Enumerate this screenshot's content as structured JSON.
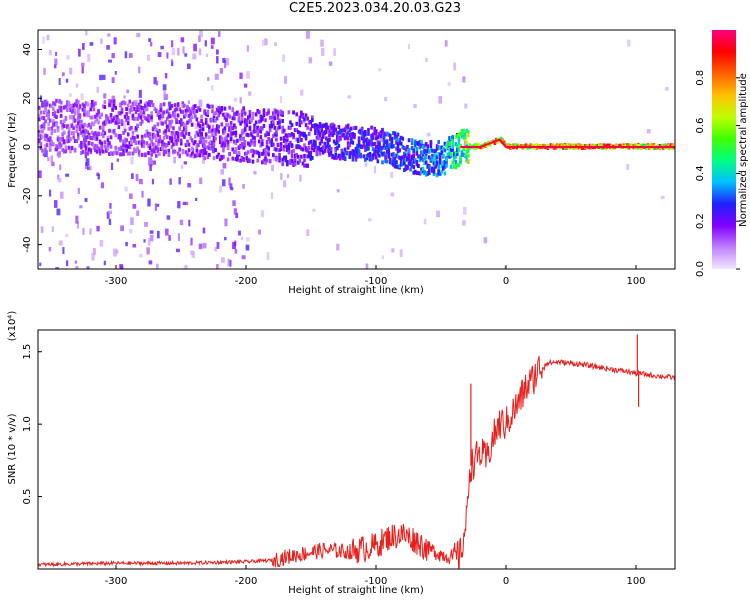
{
  "title": "C2E5.2023.034.20.03.G23",
  "chart_data": [
    {
      "type": "heatmap",
      "xlabel": "Height of straight line (km)",
      "ylabel": "Frequency (Hz)",
      "xlim": [
        -360,
        130
      ],
      "ylim": [
        -50,
        48
      ],
      "x_ticks": [
        -300,
        -200,
        -100,
        0,
        100
      ],
      "y_ticks": [
        -40,
        -20,
        0,
        20,
        40
      ],
      "colorbar": {
        "label": "Normalized spectral amplitude",
        "range": [
          0,
          1
        ],
        "ticks": [
          0.0,
          0.2,
          0.4,
          0.6,
          0.8
        ],
        "colors": [
          "#f2e6ff",
          "#c080ff",
          "#8000ff",
          "#2020ff",
          "#00c0ff",
          "#00ff80",
          "#40ff00",
          "#c0ff00",
          "#ffc000",
          "#ff6000",
          "#ff0000",
          "#ff0080"
        ]
      },
      "ridge": {
        "x": [
          -350,
          -300,
          -250,
          -200,
          -150,
          -100,
          -70,
          -50,
          -35,
          -20,
          -5,
          0,
          50,
          100,
          130
        ],
        "y": [
          8,
          8,
          7,
          5,
          3,
          1,
          -4,
          -5,
          0,
          0,
          3,
          0,
          0,
          0,
          0
        ],
        "amplitude": [
          0.15,
          0.18,
          0.18,
          0.2,
          0.25,
          0.3,
          0.35,
          0.4,
          0.6,
          0.85,
          0.9,
          0.9,
          0.9,
          0.9,
          0.9
        ]
      }
    },
    {
      "type": "line",
      "xlabel": "Height of straight line (km)",
      "ylabel": "SNR (10 * v/v)",
      "y_multiplier": "(x10⁴)",
      "xlim": [
        -360,
        130
      ],
      "ylim": [
        0,
        1.65
      ],
      "x_ticks": [
        -300,
        -200,
        -100,
        0,
        100
      ],
      "y_ticks": [
        0.5,
        1.0,
        1.5
      ],
      "y_tick_labels": [
        "0.5",
        "1.0",
        "1.5"
      ],
      "color": "#e8201c",
      "x": [
        -360,
        -300,
        -250,
        -200,
        -180,
        -160,
        -140,
        -120,
        -100,
        -90,
        -80,
        -70,
        -60,
        -50,
        -40,
        -35,
        -30,
        -28,
        -20,
        -15,
        -10,
        -5,
        0,
        5,
        10,
        15,
        20,
        25,
        30,
        40,
        60,
        80,
        95,
        100,
        103,
        110,
        120,
        130
      ],
      "y": [
        0.03,
        0.04,
        0.04,
        0.05,
        0.06,
        0.1,
        0.13,
        0.12,
        0.16,
        0.22,
        0.24,
        0.2,
        0.14,
        0.1,
        0.08,
        0.1,
        0.35,
        0.7,
        0.8,
        0.75,
        0.9,
        1.0,
        1.0,
        1.08,
        1.15,
        1.25,
        1.3,
        1.38,
        1.42,
        1.43,
        1.41,
        1.38,
        1.36,
        1.35,
        1.35,
        1.34,
        1.33,
        1.32
      ],
      "spikes": [
        {
          "x": -27,
          "y": 1.28
        },
        {
          "x": 101,
          "y": 1.62
        },
        {
          "x": 102,
          "y": 1.12
        }
      ]
    }
  ]
}
